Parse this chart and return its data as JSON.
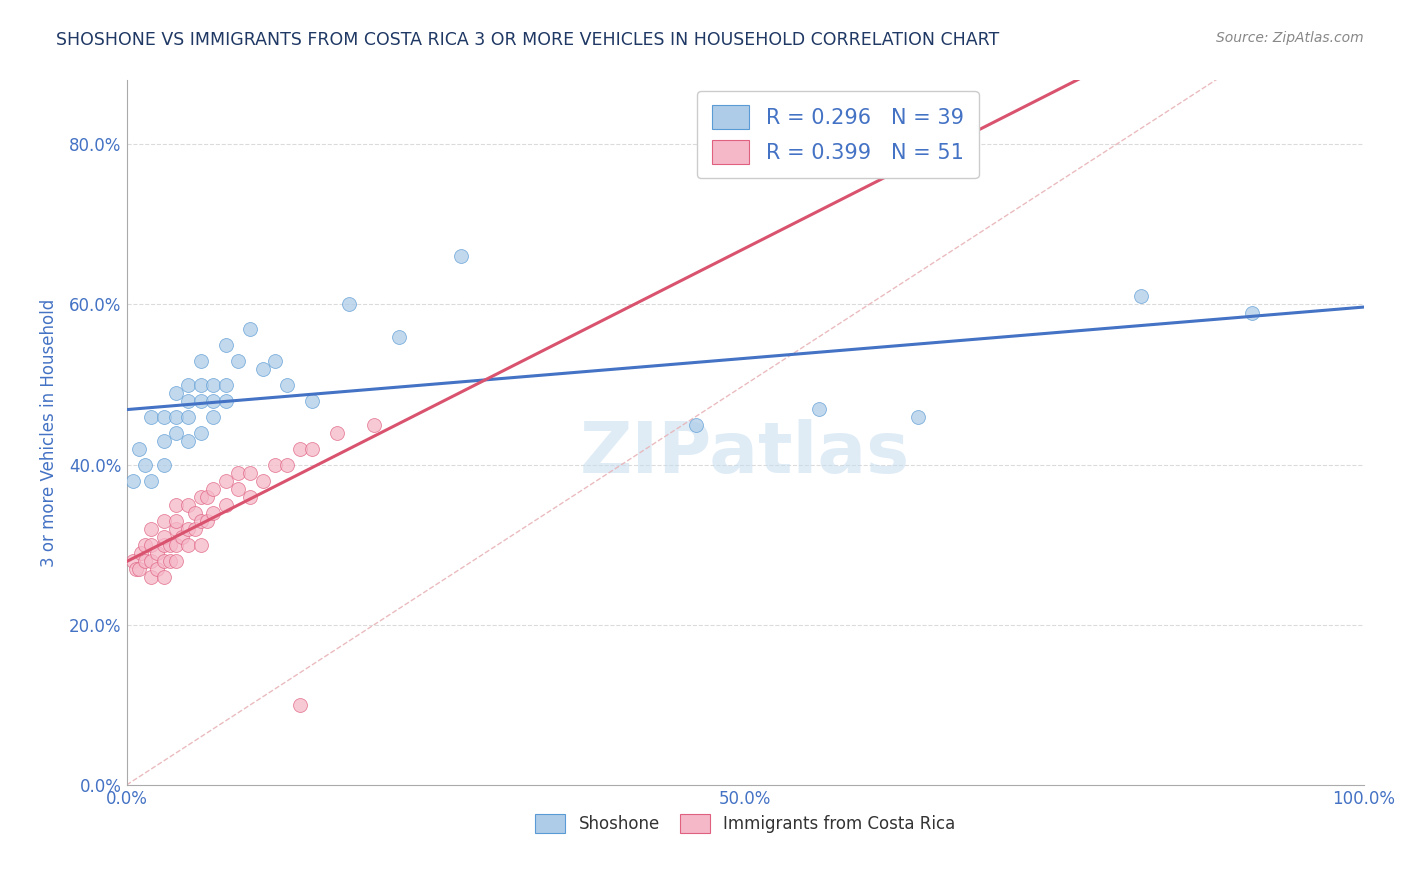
{
  "title": "SHOSHONE VS IMMIGRANTS FROM COSTA RICA 3 OR MORE VEHICLES IN HOUSEHOLD CORRELATION CHART",
  "source_text": "Source: ZipAtlas.com",
  "ylabel": "3 or more Vehicles in Household",
  "xlim": [
    0.0,
    1.0
  ],
  "ylim": [
    0.0,
    0.88
  ],
  "xticks": [
    0.0,
    0.1,
    0.2,
    0.3,
    0.4,
    0.5,
    0.6,
    0.7,
    0.8,
    0.9,
    1.0
  ],
  "yticks": [
    0.0,
    0.2,
    0.4,
    0.6,
    0.8
  ],
  "ytick_labels": [
    "0.0%",
    "20.0%",
    "40.0%",
    "60.0%",
    "80.0%"
  ],
  "xtick_labels": [
    "0.0%",
    "",
    "",
    "",
    "",
    "50.0%",
    "",
    "",
    "",
    "",
    "100.0%"
  ],
  "shoshone_color": "#aecce8",
  "costa_rica_color": "#f5b8c8",
  "shoshone_edge_color": "#5b9bd5",
  "costa_rica_edge_color": "#e06080",
  "shoshone_line_color": "#4472c4",
  "costa_rica_line_color": "#d9536f",
  "R_shoshone": 0.296,
  "N_shoshone": 39,
  "R_costa_rica": 0.399,
  "N_costa_rica": 51,
  "legend_label_shoshone": "Shoshone",
  "legend_label_costa_rica": "Immigrants from Costa Rica",
  "watermark": "ZIPatlas",
  "title_color": "#1f3864",
  "axis_label_color": "#4472c4",
  "tick_color": "#4472c4",
  "grid_color": "#cccccc",
  "diag_color": "#e8b4b8",
  "shoshone_x": [
    0.005,
    0.01,
    0.015,
    0.02,
    0.02,
    0.03,
    0.03,
    0.03,
    0.04,
    0.04,
    0.04,
    0.05,
    0.05,
    0.05,
    0.05,
    0.06,
    0.06,
    0.06,
    0.06,
    0.07,
    0.07,
    0.07,
    0.08,
    0.08,
    0.08,
    0.09,
    0.1,
    0.11,
    0.12,
    0.13,
    0.15,
    0.18,
    0.22,
    0.27,
    0.46,
    0.56,
    0.64,
    0.82,
    0.91
  ],
  "shoshone_y": [
    0.38,
    0.42,
    0.4,
    0.38,
    0.46,
    0.4,
    0.43,
    0.46,
    0.44,
    0.46,
    0.49,
    0.43,
    0.46,
    0.48,
    0.5,
    0.44,
    0.48,
    0.5,
    0.53,
    0.46,
    0.48,
    0.5,
    0.48,
    0.5,
    0.55,
    0.53,
    0.57,
    0.52,
    0.53,
    0.5,
    0.48,
    0.6,
    0.56,
    0.66,
    0.45,
    0.47,
    0.46,
    0.61,
    0.59
  ],
  "costa_rica_x": [
    0.005,
    0.008,
    0.01,
    0.012,
    0.015,
    0.015,
    0.02,
    0.02,
    0.02,
    0.02,
    0.025,
    0.025,
    0.03,
    0.03,
    0.03,
    0.03,
    0.03,
    0.035,
    0.035,
    0.04,
    0.04,
    0.04,
    0.04,
    0.04,
    0.045,
    0.05,
    0.05,
    0.05,
    0.055,
    0.055,
    0.06,
    0.06,
    0.06,
    0.065,
    0.065,
    0.07,
    0.07,
    0.08,
    0.08,
    0.09,
    0.09,
    0.1,
    0.1,
    0.11,
    0.12,
    0.13,
    0.14,
    0.15,
    0.17,
    0.2,
    0.14
  ],
  "costa_rica_y": [
    0.28,
    0.27,
    0.27,
    0.29,
    0.28,
    0.3,
    0.26,
    0.28,
    0.3,
    0.32,
    0.27,
    0.29,
    0.26,
    0.28,
    0.3,
    0.31,
    0.33,
    0.28,
    0.3,
    0.28,
    0.3,
    0.32,
    0.33,
    0.35,
    0.31,
    0.3,
    0.32,
    0.35,
    0.32,
    0.34,
    0.3,
    0.33,
    0.36,
    0.33,
    0.36,
    0.34,
    0.37,
    0.35,
    0.38,
    0.37,
    0.39,
    0.36,
    0.39,
    0.38,
    0.4,
    0.4,
    0.42,
    0.42,
    0.44,
    0.45,
    0.1
  ]
}
